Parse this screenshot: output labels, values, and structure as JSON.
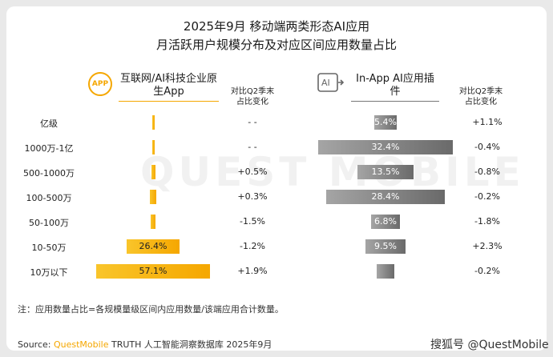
{
  "chart_data": {
    "type": "bar",
    "title": "2025年9月 移动端两类形态AI应用",
    "subtitle": "月活跃用户规模分布及对应区间应用数量占比",
    "categories": [
      "亿级",
      "1000万-1亿",
      "500-1000万",
      "100-500万",
      "50-100万",
      "10-50万",
      "10万以下"
    ],
    "series": [
      {
        "name": "互联网/AI科技企业原生App",
        "values": [
          0.3,
          0.2,
          2.0,
          3.5,
          2.5,
          26.4,
          57.1
        ],
        "labels": [
          "",
          "",
          "",
          "",
          "",
          "26.4%",
          "57.1%"
        ],
        "comparison_header": "对比Q2季末占比变化",
        "comparison": [
          "- -",
          "- -",
          "+0.5%",
          "+0.3%",
          "-1.5%",
          "-1.2%",
          "+1.9%"
        ]
      },
      {
        "name": "In-App AI应用插件",
        "values": [
          5.4,
          32.4,
          13.5,
          28.4,
          6.8,
          9.5,
          4.1
        ],
        "labels": [
          "5.4%",
          "32.4%",
          "13.5%",
          "28.4%",
          "6.8%",
          "9.5%",
          ""
        ],
        "comparison_header": "对比Q2季末占比变化",
        "comparison": [
          "+1.1%",
          "-0.4%",
          "-0.8%",
          "-0.2%",
          "-1.8%",
          "+2.3%",
          "-0.2%"
        ]
      }
    ],
    "ylim": [
      0,
      60
    ]
  },
  "panels": {
    "left": {
      "title": "互联网/AI科技企业原生App",
      "icon_text": "APP",
      "compare_head": "对比Q2季末占比变化"
    },
    "right": {
      "title": "In-App AI应用插件",
      "icon_text": "AI",
      "compare_head": "对比Q2季末占比变化"
    }
  },
  "watermark": "QUEST MOBILE",
  "footnote": "注：应用数量占比=各规模量级区间内应用数量/该端应用合计数量。",
  "source": {
    "prefix": "Source: ",
    "brand": "QuestMobile",
    "rest": " TRUTH 人工智能洞察数据库 2025年9月"
  },
  "credit": "搜狐号 @QuestMobile",
  "colors": {
    "left_bar": "#f5a700",
    "right_bar": "#808080",
    "accent": "#f5a700"
  }
}
